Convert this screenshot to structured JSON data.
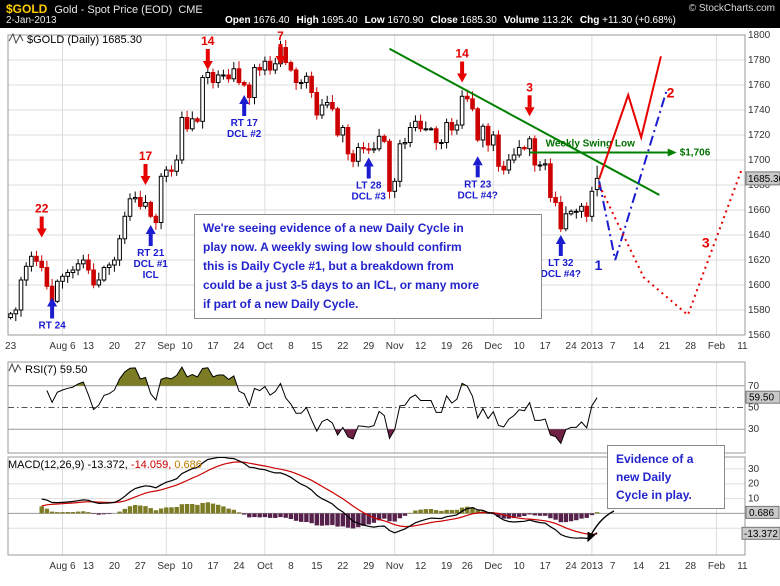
{
  "header": {
    "symbol": "$GOLD",
    "title": "Gold - Spot Price (EOD)",
    "exchange": "CME",
    "date": "2-Jan-2013",
    "copyright": "© StockCharts.com",
    "fields": [
      {
        "label": "Open",
        "value": "1676.40"
      },
      {
        "label": "High",
        "value": "1695.40"
      },
      {
        "label": "Low",
        "value": "1670.90"
      },
      {
        "label": "Close",
        "value": "1685.30"
      },
      {
        "label": "Volume",
        "value": "113.2K"
      },
      {
        "label": "Chg",
        "value": "+11.30 (+0.68%)"
      }
    ]
  },
  "annotations": {
    "main_box_text": "We're seeing evidence of a new Daily Cycle in\nplay now.  A weekly swing low should confirm\nthis is Daily Cycle #1, but a breakdown from\ncould be a just 3-5 days to an ICL, or many more\nif part of a new Daily Cycle.",
    "macd_box_text": "Evidence of a\nnew Daily\nCycle in play."
  },
  "chart_data": [
    {
      "type": "candlestick",
      "label": "$GOLD (Daily) 1685.30",
      "price_label": "1685.30",
      "ylim": [
        1560,
        1800
      ],
      "y_step": 20,
      "slots_total": 142,
      "first_open": 1574,
      "closes": [
        1577,
        1580,
        1604,
        1615,
        1623,
        1619,
        1614,
        1599,
        1587,
        1603,
        1607,
        1610,
        1612,
        1617,
        1620,
        1612,
        1600,
        1604,
        1614,
        1616,
        1620,
        1637,
        1655,
        1669,
        1670,
        1663,
        1666,
        1655,
        1650,
        1687,
        1692,
        1691,
        1700,
        1734,
        1725,
        1733,
        1731,
        1766,
        1770,
        1762,
        1768,
        1768,
        1765,
        1773,
        1762,
        1760,
        1750,
        1774,
        1772,
        1779,
        1772,
        1777,
        1790,
        1778,
        1772,
        1762,
        1762,
        1767,
        1754,
        1736,
        1744,
        1746,
        1741,
        1720,
        1726,
        1705,
        1699,
        1710,
        1709,
        1708,
        1709,
        1719,
        1715,
        1675,
        1683,
        1713,
        1714,
        1726,
        1731,
        1725,
        1725,
        1725,
        1714,
        1714,
        1730,
        1724,
        1728,
        1751,
        1749,
        1741,
        1716,
        1727,
        1712,
        1720,
        1695,
        1692,
        1700,
        1704,
        1710,
        1709,
        1717,
        1696,
        1696,
        1697,
        1670,
        1666,
        1645,
        1657,
        1659,
        1659,
        1663,
        1655,
        1675,
        1685.3
      ],
      "last_ohlc": {
        "open": 1676.4,
        "high": 1695.4,
        "low": 1670.9,
        "close": 1685.3
      },
      "x_ticks": [
        [
          0,
          "23"
        ],
        [
          10,
          "Aug 6"
        ],
        [
          15,
          "13"
        ],
        [
          20,
          "20"
        ],
        [
          25,
          "27"
        ],
        [
          30,
          "Sep"
        ],
        [
          34,
          "10"
        ],
        [
          39,
          "17"
        ],
        [
          44,
          "24"
        ],
        [
          49,
          "Oct"
        ],
        [
          54,
          "8"
        ],
        [
          59,
          "15"
        ],
        [
          64,
          "22"
        ],
        [
          69,
          "29"
        ],
        [
          74,
          "Nov"
        ],
        [
          79,
          "12"
        ],
        [
          84,
          "19"
        ],
        [
          88,
          "26"
        ],
        [
          93,
          "Dec"
        ],
        [
          98,
          "10"
        ],
        [
          103,
          "17"
        ],
        [
          108,
          "24"
        ],
        [
          112,
          "2013"
        ],
        [
          116,
          "7"
        ],
        [
          121,
          "14"
        ],
        [
          126,
          "21"
        ],
        [
          131,
          "28"
        ],
        [
          136,
          "Feb"
        ],
        [
          141,
          "11"
        ]
      ],
      "month_slots": [
        10,
        30,
        49,
        74,
        93,
        112,
        136
      ],
      "arrows_down": [
        {
          "slot": 6,
          "tip": 1638,
          "label": "22"
        },
        {
          "slot": 26,
          "tip": 1680,
          "label": "17"
        },
        {
          "slot": 38,
          "tip": 1772,
          "label": "14"
        },
        {
          "slot": 52,
          "tip": 1776,
          "label": "7"
        },
        {
          "slot": 87,
          "tip": 1762,
          "label": "14"
        },
        {
          "slot": 100,
          "tip": 1735,
          "label": "3"
        }
      ],
      "arrows_up": [
        {
          "slot": 8,
          "tip": 1590,
          "lines": [
            "RT 24"
          ]
        },
        {
          "slot": 27,
          "tip": 1648,
          "lines": [
            "RT 21",
            "DCL #1",
            "ICL"
          ]
        },
        {
          "slot": 45,
          "tip": 1752,
          "lines": [
            "RT 17",
            "DCL #2"
          ]
        },
        {
          "slot": 69,
          "tip": 1702,
          "lines": [
            "LT 28",
            "DCL #3"
          ]
        },
        {
          "slot": 90,
          "tip": 1703,
          "lines": [
            "RT 23",
            "DCL #4?"
          ]
        },
        {
          "slot": 106,
          "tip": 1640,
          "lines": [
            "LT 32",
            "DCL #4?"
          ]
        }
      ],
      "trendline": {
        "from": [
          73,
          1789
        ],
        "to": [
          125,
          1672
        ],
        "color": "#008000"
      },
      "swing_low": {
        "price": 1706,
        "from_slot": 100,
        "to_slot": 127,
        "text": "Weekly Swing Low",
        "label": "$1,706",
        "color": "#007000"
      },
      "projections": [
        {
          "label": "1",
          "color": "#1b1bd0",
          "dash": "10 4 2 4",
          "points": [
            [
              113.4,
              1683
            ],
            [
              116.5,
              1620
            ],
            [
              126.5,
              1757
            ]
          ],
          "label_at": [
            112.5,
            1612
          ]
        },
        {
          "label": "2",
          "color": "#e60000",
          "dash": "",
          "points": [
            [
              113.4,
              1685
            ],
            [
              119,
              1752
            ],
            [
              121.5,
              1718
            ],
            [
              125.3,
              1783
            ]
          ],
          "label_at": [
            126.4,
            1750
          ]
        },
        {
          "label": "3",
          "color": "#e60000",
          "dash": "2 4",
          "points": [
            [
              113.4,
              1680
            ],
            [
              122,
              1606
            ],
            [
              130.5,
              1576
            ],
            [
              141,
              1694
            ]
          ],
          "label_at": [
            133.2,
            1630
          ]
        }
      ],
      "colors": {
        "up": "#000000",
        "up_fill": "#ffffff",
        "down": "#cc0000",
        "arrow_down": "#e60000",
        "arrow_up": "#1b1bd0"
      }
    },
    {
      "type": "line",
      "indicator": "RSI",
      "period": 7,
      "label": "RSI(7) 59.50",
      "last_value": 59.5,
      "axis_box": "59.50",
      "ylim": [
        8,
        92
      ],
      "bands": {
        "overbought": 70,
        "midline": 50,
        "oversold": 30
      },
      "y_tick_labels": [
        70,
        50,
        30
      ],
      "colors": {
        "line": "#000000",
        "overbought_fill": "#7c7c25",
        "oversold_fill": "#6e2045"
      }
    },
    {
      "type": "macd",
      "params": [
        12,
        26,
        9
      ],
      "label_parts": [
        {
          "text": "MACD(12,26,9) -13.372,",
          "color": "#000000"
        },
        {
          "text": " -14.059,",
          "color": "#cc0000"
        },
        {
          "text": " 0.686",
          "color": "#bf7b00"
        }
      ],
      "values": {
        "macd": -13.372,
        "signal": -14.059,
        "hist": 0.686
      },
      "axis_boxes": {
        "hist": "0.686",
        "macd": "-13.372"
      },
      "ylim": [
        -28,
        38
      ],
      "y_ticks": [
        30,
        20,
        10
      ],
      "grid_extra": [
        0,
        -10
      ],
      "colors": {
        "macd_line": "#000000",
        "signal_line": "#cc0000",
        "hist_pos": "#7c7c25",
        "hist_neg": "#55214a"
      }
    }
  ]
}
